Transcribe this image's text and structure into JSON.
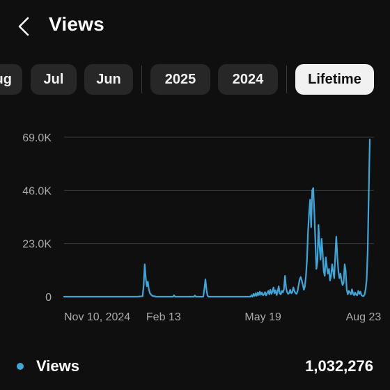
{
  "header": {
    "title": "Views",
    "back_icon": "chevron-left-icon"
  },
  "periods": [
    {
      "label": "Aug",
      "selected": false
    },
    {
      "label": "Jul",
      "selected": false
    },
    {
      "label": "Jun",
      "selected": false
    },
    {
      "label": "2025",
      "selected": false
    },
    {
      "label": "2024",
      "selected": false
    },
    {
      "label": "Lifetime",
      "selected": true
    }
  ],
  "colors": {
    "background": "#0f0f0f",
    "chip": "#272727",
    "chip_selected": "#f1f1f1",
    "series": "#3ea6d9",
    "grid": "#3a3a3a",
    "axis_text": "#aaaaaa"
  },
  "chart_data": {
    "type": "line",
    "ylim": [
      0,
      69000
    ],
    "y_ticks": [
      {
        "value": 0,
        "label": "0"
      },
      {
        "value": 23000,
        "label": "23.0K"
      },
      {
        "value": 46000,
        "label": "46.0K"
      },
      {
        "value": 69000,
        "label": "69.0K"
      }
    ],
    "x_ticks": [
      {
        "x": 0,
        "label": "Nov 10, 2024"
      },
      {
        "x": 95,
        "label": "Feb 13"
      },
      {
        "x": 190,
        "label": "May 19"
      },
      {
        "x": 286,
        "label": "Aug 23"
      }
    ],
    "xlim": [
      0,
      296
    ],
    "grid": true,
    "legend": "bottom",
    "series": [
      {
        "name": "Views",
        "points": [
          [
            0,
            0
          ],
          [
            20,
            0
          ],
          [
            40,
            0
          ],
          [
            60,
            0
          ],
          [
            70,
            0
          ],
          [
            75,
            200
          ],
          [
            76,
            5000
          ],
          [
            77,
            14000
          ],
          [
            78,
            8000
          ],
          [
            79,
            4500
          ],
          [
            80,
            6500
          ],
          [
            81,
            3000
          ],
          [
            82,
            1500
          ],
          [
            84,
            400
          ],
          [
            88,
            0
          ],
          [
            100,
            0
          ],
          [
            104,
            0
          ],
          [
            105,
            600
          ],
          [
            106,
            0
          ],
          [
            120,
            0
          ],
          [
            124,
            0
          ],
          [
            125,
            500
          ],
          [
            126,
            0
          ],
          [
            133,
            0
          ],
          [
            134,
            3500
          ],
          [
            135,
            7500
          ],
          [
            136,
            3000
          ],
          [
            137,
            400
          ],
          [
            138,
            0
          ],
          [
            150,
            0
          ],
          [
            170,
            0
          ],
          [
            178,
            0
          ],
          [
            179,
            700
          ],
          [
            180,
            0
          ],
          [
            181,
            1200
          ],
          [
            182,
            300
          ],
          [
            183,
            1500
          ],
          [
            184,
            400
          ],
          [
            185,
            1800
          ],
          [
            186,
            700
          ],
          [
            187,
            2200
          ],
          [
            188,
            800
          ],
          [
            189,
            1800
          ],
          [
            190,
            600
          ],
          [
            191,
            900
          ],
          [
            192,
            2000
          ],
          [
            193,
            500
          ],
          [
            194,
            1600
          ],
          [
            195,
            2500
          ],
          [
            196,
            1000
          ],
          [
            197,
            3000
          ],
          [
            198,
            1200
          ],
          [
            199,
            2200
          ],
          [
            200,
            4000
          ],
          [
            201,
            1500
          ],
          [
            202,
            2800
          ],
          [
            203,
            700
          ],
          [
            204,
            2200
          ],
          [
            205,
            4500
          ],
          [
            206,
            1400
          ],
          [
            207,
            1000
          ],
          [
            208,
            2500
          ],
          [
            209,
            1800
          ],
          [
            210,
            3200
          ],
          [
            211,
            9000
          ],
          [
            212,
            4000
          ],
          [
            213,
            2000
          ],
          [
            214,
            1200
          ],
          [
            215,
            1600
          ],
          [
            216,
            3000
          ],
          [
            217,
            1500
          ],
          [
            218,
            1800
          ],
          [
            219,
            4000
          ],
          [
            220,
            2500
          ],
          [
            221,
            1500
          ],
          [
            222,
            1200
          ],
          [
            223,
            2500
          ],
          [
            224,
            5000
          ],
          [
            225,
            7500
          ],
          [
            226,
            8500
          ],
          [
            227,
            7000
          ],
          [
            228,
            5000
          ],
          [
            229,
            3000
          ],
          [
            230,
            4500
          ],
          [
            231,
            9000
          ],
          [
            232,
            16000
          ],
          [
            233,
            28000
          ],
          [
            234,
            36000
          ],
          [
            235,
            42000
          ],
          [
            236,
            30000
          ],
          [
            237,
            46000
          ],
          [
            238,
            47000
          ],
          [
            239,
            37000
          ],
          [
            240,
            24000
          ],
          [
            241,
            12000
          ],
          [
            242,
            15000
          ],
          [
            243,
            31000
          ],
          [
            244,
            22000
          ],
          [
            245,
            16000
          ],
          [
            246,
            25000
          ],
          [
            247,
            19000
          ],
          [
            248,
            11000
          ],
          [
            249,
            9000
          ],
          [
            250,
            17000
          ],
          [
            251,
            13000
          ],
          [
            252,
            10000
          ],
          [
            253,
            12000
          ],
          [
            254,
            7000
          ],
          [
            255,
            9000
          ],
          [
            256,
            14000
          ],
          [
            257,
            11000
          ],
          [
            258,
            8000
          ],
          [
            259,
            18000
          ],
          [
            260,
            26000
          ],
          [
            261,
            17000
          ],
          [
            262,
            11000
          ],
          [
            263,
            8000
          ],
          [
            264,
            10000
          ],
          [
            265,
            7000
          ],
          [
            266,
            5000
          ],
          [
            267,
            6000
          ],
          [
            268,
            14000
          ],
          [
            269,
            11000
          ],
          [
            270,
            3000
          ],
          [
            271,
            1000
          ],
          [
            272,
            2500
          ],
          [
            273,
            1800
          ],
          [
            274,
            1000
          ],
          [
            275,
            3200
          ],
          [
            276,
            1400
          ],
          [
            277,
            600
          ],
          [
            278,
            1800
          ],
          [
            279,
            800
          ],
          [
            280,
            600
          ],
          [
            281,
            2500
          ],
          [
            282,
            1200
          ],
          [
            283,
            2200
          ],
          [
            284,
            600
          ],
          [
            285,
            300
          ],
          [
            286,
            200
          ],
          [
            287,
            900
          ],
          [
            288,
            3200
          ],
          [
            289,
            7500
          ],
          [
            290,
            20000
          ],
          [
            291,
            45000
          ],
          [
            292,
            68000
          ]
        ]
      }
    ]
  },
  "legend": {
    "label": "Views",
    "total": "1,032,276"
  }
}
